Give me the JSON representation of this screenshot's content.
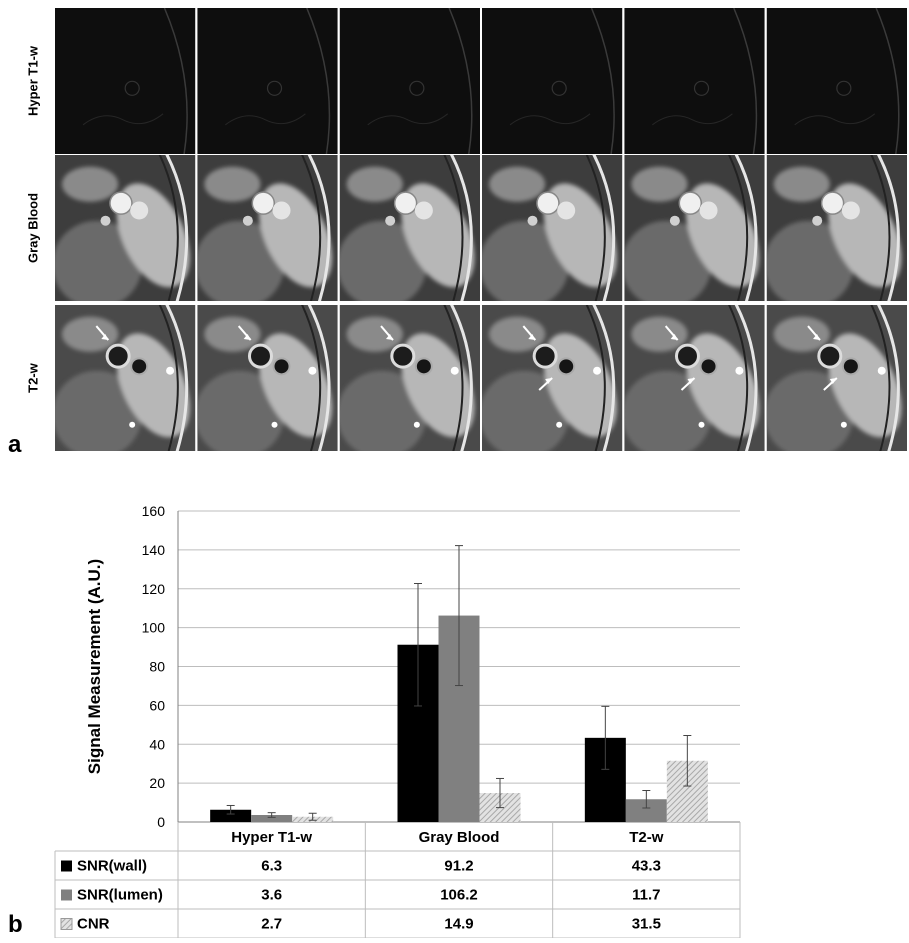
{
  "figure": {
    "panel_a_label": "a",
    "panel_b_label": "b",
    "image_rows": [
      {
        "label": "Hyper T1-w",
        "kind": "dark"
      },
      {
        "label": "Gray Blood",
        "kind": "gray"
      },
      {
        "label": "T2-w",
        "kind": "t2"
      }
    ],
    "images_per_row": 6
  },
  "colors": {
    "snr_wall": "#000000",
    "snr_lumen": "#808080",
    "cnr": "#bfbfbf",
    "grid": "#bdbdbd",
    "axis": "#808080"
  },
  "chart_data": {
    "type": "bar",
    "title": "",
    "xlabel": "",
    "ylabel": "Signal Measurement (A.U.)",
    "ylim": [
      0,
      160
    ],
    "yticks": [
      0,
      20,
      40,
      60,
      80,
      100,
      120,
      140,
      160
    ],
    "grid": true,
    "categories": [
      "Hyper T1-w",
      "Gray Blood",
      "T2-w"
    ],
    "series": [
      {
        "name": "SNR(wall)",
        "values": [
          6.3,
          91.2,
          43.3
        ],
        "errors": [
          2.2,
          31.5,
          16.2
        ],
        "labels": [
          "6.3",
          "91.2",
          "43.3"
        ],
        "color": "#000000",
        "pattern": "solid"
      },
      {
        "name": "SNR(lumen)",
        "values": [
          3.6,
          106.2,
          11.7
        ],
        "errors": [
          1.2,
          36.0,
          4.5
        ],
        "labels": [
          "3.6",
          "106.2",
          "11.7"
        ],
        "color": "#808080",
        "pattern": "solid"
      },
      {
        "name": "CNR",
        "values": [
          2.7,
          14.9,
          31.5
        ],
        "errors": [
          1.8,
          7.5,
          13.0
        ],
        "labels": [
          "2.7",
          "14.9",
          "31.5"
        ],
        "color": "#bfbfbf",
        "pattern": "hatched"
      }
    ],
    "legend": "data-table-below"
  }
}
